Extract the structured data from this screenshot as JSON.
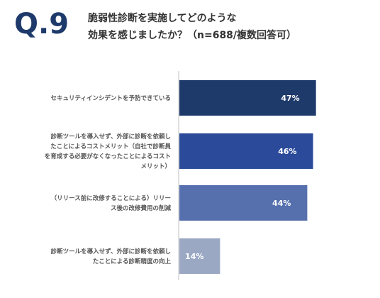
{
  "question": {
    "number": "Q.9",
    "title_line1": "脆弱性診断を実施してどのような",
    "title_line2": "効果を感じましたか？（n=688/複数回答可）"
  },
  "chart_data": {
    "type": "bar",
    "orientation": "horizontal",
    "categories": [
      [
        "セキュリティインシデントを予防できている"
      ],
      [
        "診断ツールを導入せず、外部に診断を依頼し",
        "たことによるコストメリット（自社で診断員",
        "を育成する必要がなくなったことによるコスト",
        "メリット）"
      ],
      [
        "（リリース前に改修することによる）リリー",
        "ス後の改修費用の削減"
      ],
      [
        "診断ツールを導入せず、外部に診断を依頼し",
        "たことによる診断精度の向上"
      ]
    ],
    "values": [
      47,
      46,
      44,
      14
    ],
    "value_labels": [
      "47%",
      "46%",
      "44%",
      "14%"
    ],
    "colors": [
      "#1e3a6b",
      "#2b4a9a",
      "#5570ad",
      "#9aa8c4"
    ],
    "xlim": [
      0,
      100
    ],
    "title": "",
    "xlabel": "",
    "ylabel": ""
  }
}
